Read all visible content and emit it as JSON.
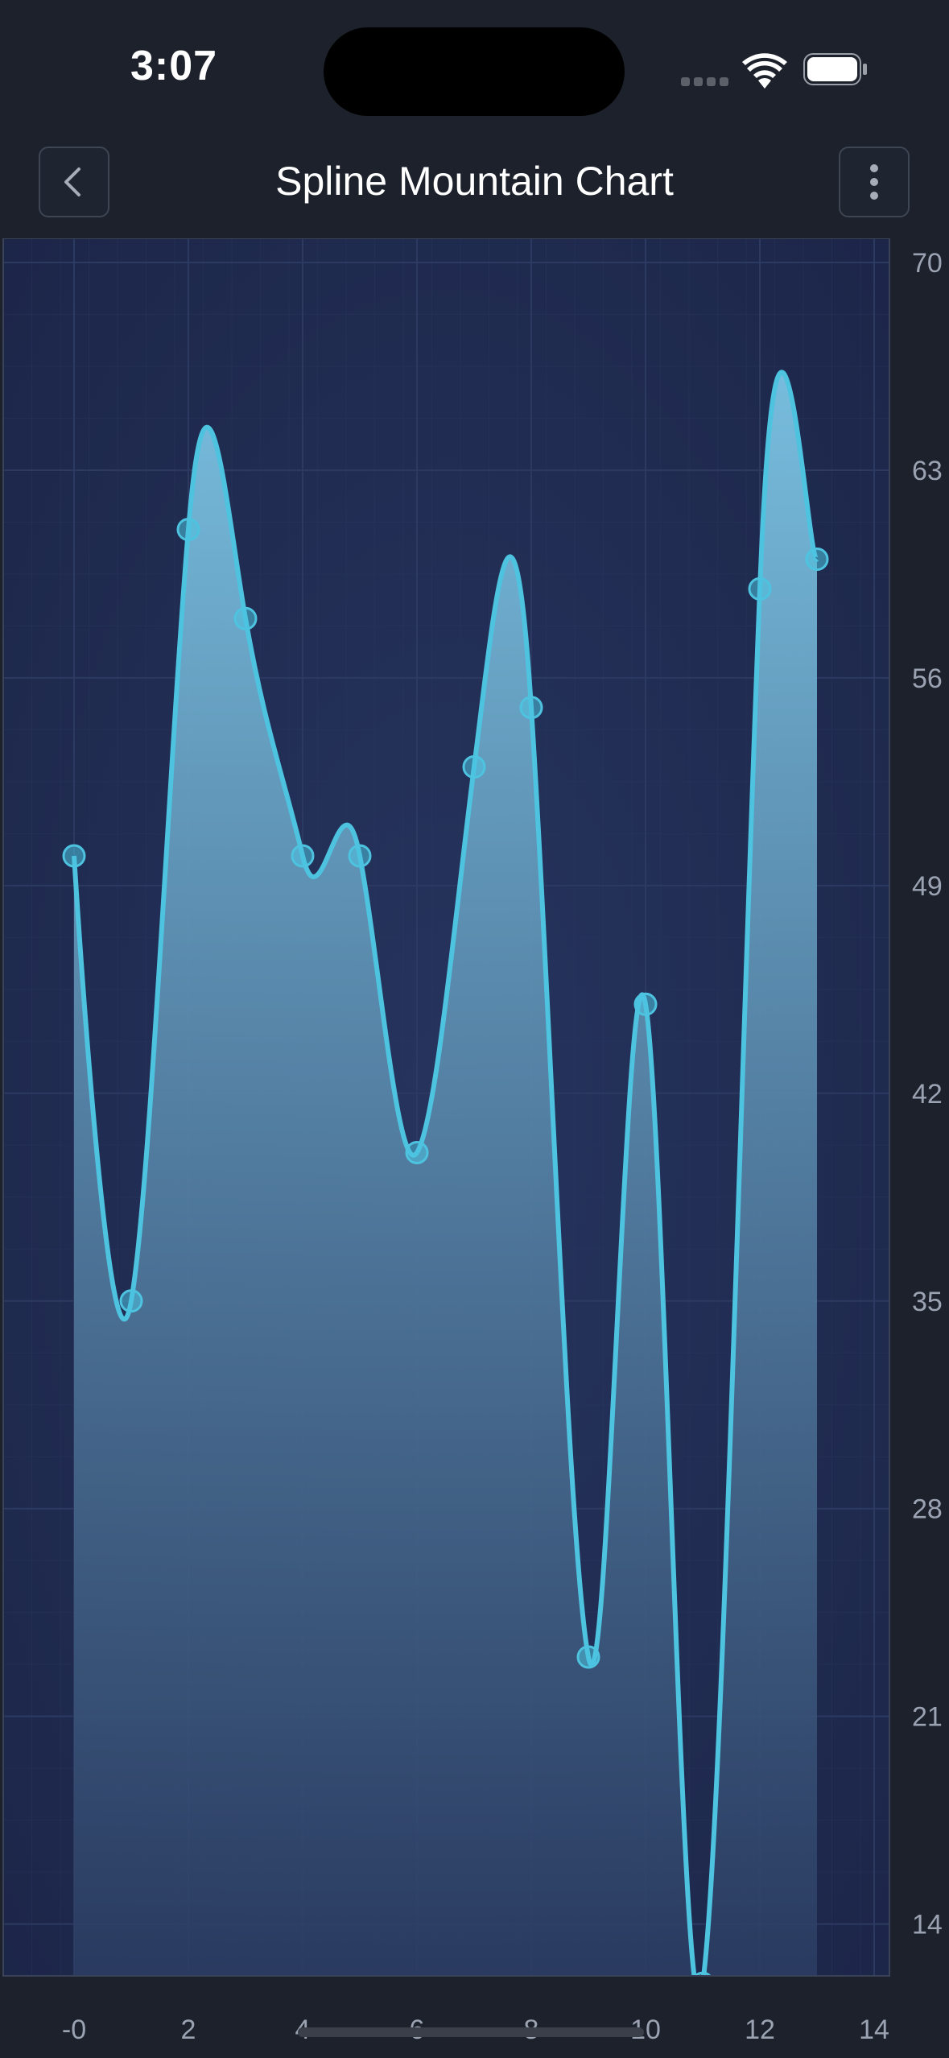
{
  "status_bar": {
    "time": "3:07"
  },
  "header": {
    "title": "Spline Mountain Chart",
    "back_icon": "chevron-left-icon",
    "more_icon": "more-vertical-icon"
  },
  "colors": {
    "background": "#1c212b",
    "plot_background": "#1f2a4d",
    "line": "#4dc3e0",
    "fill_top": "#7cc4e4",
    "fill_bottom": "#2a3a60",
    "grid": "#2c3a62",
    "tick_label": "#9ba3b3"
  },
  "chart_data": {
    "type": "area",
    "subtype": "spline-mountain",
    "x": [
      0,
      1,
      2,
      3,
      4,
      5,
      6,
      7,
      8,
      9,
      10,
      11,
      12,
      13
    ],
    "values": [
      50,
      35,
      61,
      58,
      50,
      50,
      40,
      53,
      55,
      23,
      45,
      12,
      59,
      60
    ],
    "xlim": [
      0,
      14
    ],
    "ylim": [
      12,
      70
    ],
    "x_ticks": [
      0,
      2,
      4,
      6,
      8,
      10,
      12,
      14
    ],
    "x_tick_labels": [
      "-0",
      "2",
      "4",
      "6",
      "8",
      "10",
      "12",
      "14"
    ],
    "y_ticks": [
      70,
      63,
      56,
      49,
      42,
      35,
      28,
      21,
      14
    ],
    "y_tick_labels": [
      "70",
      "63",
      "56",
      "49",
      "42",
      "35",
      "28",
      "21",
      "14"
    ],
    "y_axis_position": "right",
    "grid": true,
    "markers": true
  }
}
